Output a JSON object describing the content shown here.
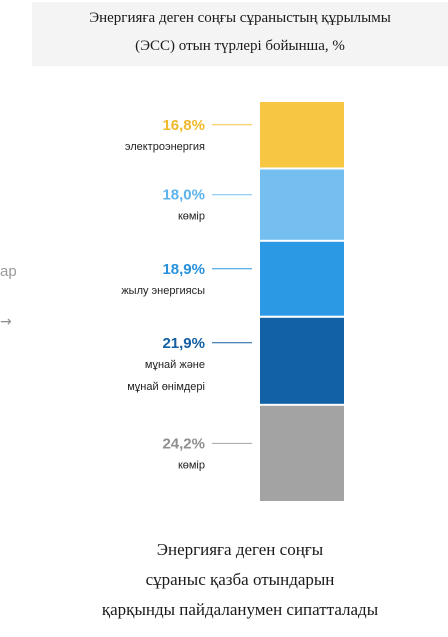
{
  "side_text": "ар",
  "side_arrow": "→",
  "chart_data": {
    "type": "bar",
    "stacked": true,
    "orientation": "vertical",
    "title_lines": [
      "Энергияға деген соңғы сұраныстың құрылымы",
      "(ЭСС) отын түрлері бойынша, %"
    ],
    "segments": [
      {
        "pct": "16,8%",
        "value": 16.8,
        "label_lines": [
          "электроэнергия"
        ],
        "color": "#f7c744",
        "pct_color": "#f0b92d"
      },
      {
        "pct": "18,0%",
        "value": 18.0,
        "label_lines": [
          "көмір"
        ],
        "color": "#74bff0",
        "pct_color": "#5cb3ec"
      },
      {
        "pct": "18,9%",
        "value": 18.9,
        "label_lines": [
          "жылу энергиясы"
        ],
        "color": "#2b99e3",
        "pct_color": "#2791dc"
      },
      {
        "pct": "21,9%",
        "value": 21.9,
        "label_lines": [
          "мұнай және",
          "мұнай өнімдері"
        ],
        "color": "#1261a6",
        "pct_color": "#135fa3"
      },
      {
        "pct": "24,2%",
        "value": 24.2,
        "label_lines": [
          "көмір"
        ],
        "color": "#a3a3a3",
        "pct_color": "#8f8f8f"
      }
    ]
  },
  "caption_lines": [
    "Энергияға деген соңғы",
    "сұраныс қазба отындарын",
    "қарқынды пайдаланумен сипатталады"
  ]
}
